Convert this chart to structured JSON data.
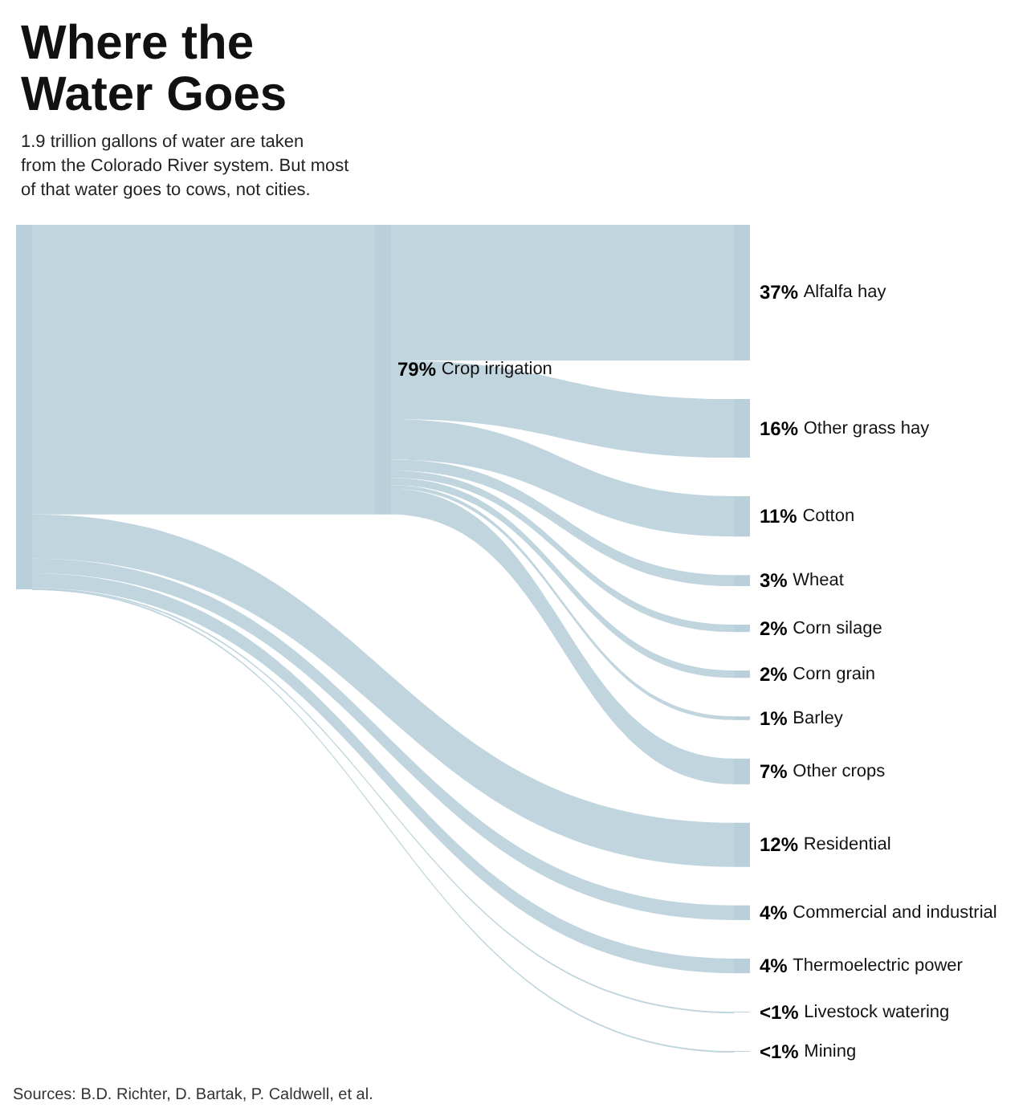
{
  "chart_data": {
    "type": "other",
    "title": "Where the Water Goes",
    "subtitle": "1.9 trillion gallons of water are taken from the Colorado River system. But most of that water goes to cows, not cities.",
    "categories": [
      "Crop irrigation",
      "Alfalfa hay",
      "Other grass hay",
      "Cotton",
      "Wheat",
      "Corn silage",
      "Corn grain",
      "Barley",
      "Other crops",
      "Residential",
      "Commercial and industrial",
      "Thermoelectric power",
      "Livestock watering",
      "Mining"
    ],
    "series": [
      {
        "color": "#b9d0da",
        "values": [
          79,
          null,
          null,
          null,
          null,
          null,
          null,
          null,
          null,
          12,
          4,
          4,
          null,
          null
        ],
        "value_labels": [
          "79%",
          null,
          null,
          null,
          null,
          null,
          null,
          null,
          null,
          "12%",
          "4%",
          "4%",
          "<1%",
          "<1%"
        ]
      },
      {
        "color": "#b9d0da",
        "values": [
          null,
          37,
          16,
          11,
          3,
          2,
          2,
          1,
          7,
          null,
          null,
          null,
          null,
          null
        ],
        "value_labels": [
          null,
          "37%",
          "16%",
          "11%",
          "3%",
          "2%",
          "2%",
          "1%",
          "7%",
          null,
          null,
          null,
          null,
          null
        ]
      }
    ],
    "annotations": [
      "Sources: B.D. Richter, D. Bartak, P. Caldwell, et al."
    ]
  }
}
